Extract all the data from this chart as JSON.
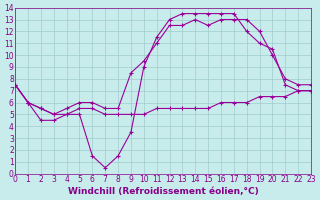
{
  "xlabel": "Windchill (Refroidissement éolien,°C)",
  "xlim": [
    0,
    23
  ],
  "ylim": [
    0,
    14
  ],
  "xticks": [
    0,
    1,
    2,
    3,
    4,
    5,
    6,
    7,
    8,
    9,
    10,
    11,
    12,
    13,
    14,
    15,
    16,
    17,
    18,
    19,
    20,
    21,
    22,
    23
  ],
  "yticks": [
    0,
    1,
    2,
    3,
    4,
    5,
    6,
    7,
    8,
    9,
    10,
    11,
    12,
    13,
    14
  ],
  "bg_color": "#c8ecec",
  "line_color": "#990099",
  "grid_color": "#a0cccc",
  "lines": [
    {
      "x": [
        0,
        1,
        2,
        3,
        4,
        5,
        6,
        7,
        8,
        9,
        10,
        11,
        12,
        13,
        14,
        15,
        16,
        17,
        18,
        19,
        20,
        21,
        22,
        23
      ],
      "y": [
        7.5,
        6.0,
        5.5,
        5.0,
        5.0,
        5.5,
        5.5,
        5.0,
        5.0,
        5.0,
        5.0,
        5.5,
        5.5,
        5.5,
        5.5,
        5.5,
        6.0,
        6.0,
        6.0,
        6.5,
        6.5,
        6.5,
        7.0,
        7.0
      ]
    },
    {
      "x": [
        0,
        1,
        2,
        3,
        4,
        5,
        6,
        7,
        8,
        9,
        10,
        11,
        12,
        13,
        14,
        15,
        16,
        17,
        18,
        19,
        20,
        21,
        22,
        23
      ],
      "y": [
        7.5,
        6.0,
        4.5,
        4.5,
        5.0,
        5.0,
        1.5,
        0.5,
        1.5,
        3.5,
        9.0,
        11.5,
        13.0,
        13.5,
        13.5,
        13.5,
        13.5,
        13.5,
        12.0,
        11.0,
        10.5,
        7.5,
        7.0,
        7.0
      ]
    },
    {
      "x": [
        0,
        1,
        2,
        3,
        4,
        5,
        6,
        7,
        8,
        9,
        10,
        11,
        12,
        13,
        14,
        15,
        16,
        17,
        18,
        19,
        20,
        21,
        22,
        23
      ],
      "y": [
        7.5,
        6.0,
        5.5,
        5.0,
        5.5,
        6.0,
        6.0,
        5.5,
        5.5,
        8.5,
        9.5,
        11.0,
        12.5,
        12.5,
        13.0,
        12.5,
        13.0,
        13.0,
        13.0,
        12.0,
        10.0,
        8.0,
        7.5,
        7.5
      ]
    }
  ],
  "font_color": "#880088",
  "tick_fontsize": 5.5,
  "label_fontsize": 6.5
}
